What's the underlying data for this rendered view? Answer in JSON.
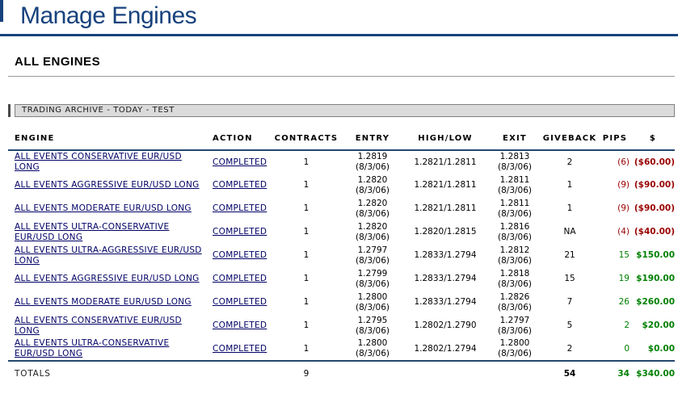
{
  "page": {
    "title": "Manage Engines",
    "section_title": "ALL ENGINES",
    "archive_bar_label": "TRADING ARCHIVE - TODAY - TEST"
  },
  "colors": {
    "brand_navy": "#17427D",
    "table_rule_navy": "#24476F",
    "link_navy": "#000066",
    "negative_red": "#990000",
    "positive_green": "#008000"
  },
  "table": {
    "columns": [
      "ENGINE",
      "ACTION",
      "CONTRACTS",
      "ENTRY",
      "HIGH/LOW",
      "EXIT",
      "GIVEBACK",
      "PIPS",
      "$"
    ],
    "rows": [
      {
        "engine": "ALL EVENTS CONSERVATIVE EUR/USD LONG",
        "action": "COMPLETED",
        "contracts": "1",
        "entry": "1.2819",
        "entry_date": "(8/3/06)",
        "highlow": "1.2821/1.2811",
        "exit": "1.2813",
        "exit_date": "(8/3/06)",
        "giveback": "2",
        "pips": "(6)",
        "dollars": "($60.00)",
        "sign": "neg"
      },
      {
        "engine": "ALL EVENTS AGGRESSIVE EUR/USD LONG",
        "action": "COMPLETED",
        "contracts": "1",
        "entry": "1.2820",
        "entry_date": "(8/3/06)",
        "highlow": "1.2821/1.2811",
        "exit": "1.2811",
        "exit_date": "(8/3/06)",
        "giveback": "1",
        "pips": "(9)",
        "dollars": "($90.00)",
        "sign": "neg"
      },
      {
        "engine": "ALL EVENTS MODERATE EUR/USD LONG",
        "action": "COMPLETED",
        "contracts": "1",
        "entry": "1.2820",
        "entry_date": "(8/3/06)",
        "highlow": "1.2821/1.2811",
        "exit": "1.2811",
        "exit_date": "(8/3/06)",
        "giveback": "1",
        "pips": "(9)",
        "dollars": "($90.00)",
        "sign": "neg"
      },
      {
        "engine": "ALL EVENTS ULTRA-CONSERVATIVE EUR/USD LONG",
        "action": "COMPLETED",
        "contracts": "1",
        "entry": "1.2820",
        "entry_date": "(8/3/06)",
        "highlow": "1.2820/1.2815",
        "exit": "1.2816",
        "exit_date": "(8/3/06)",
        "giveback": "NA",
        "pips": "(4)",
        "dollars": "($40.00)",
        "sign": "neg"
      },
      {
        "engine": "ALL EVENTS ULTRA-AGGRESSIVE EUR/USD LONG",
        "action": "COMPLETED",
        "contracts": "1",
        "entry": "1.2797",
        "entry_date": "(8/3/06)",
        "highlow": "1.2833/1.2794",
        "exit": "1.2812",
        "exit_date": "(8/3/06)",
        "giveback": "21",
        "pips": "15",
        "dollars": "$150.00",
        "sign": "pos"
      },
      {
        "engine": "ALL EVENTS AGGRESSIVE EUR/USD LONG",
        "action": "COMPLETED",
        "contracts": "1",
        "entry": "1.2799",
        "entry_date": "(8/3/06)",
        "highlow": "1.2833/1.2794",
        "exit": "1.2818",
        "exit_date": "(8/3/06)",
        "giveback": "15",
        "pips": "19",
        "dollars": "$190.00",
        "sign": "pos"
      },
      {
        "engine": "ALL EVENTS MODERATE EUR/USD LONG",
        "action": "COMPLETED",
        "contracts": "1",
        "entry": "1.2800",
        "entry_date": "(8/3/06)",
        "highlow": "1.2833/1.2794",
        "exit": "1.2826",
        "exit_date": "(8/3/06)",
        "giveback": "7",
        "pips": "26",
        "dollars": "$260.00",
        "sign": "pos"
      },
      {
        "engine": "ALL EVENTS CONSERVATIVE EUR/USD LONG",
        "action": "COMPLETED",
        "contracts": "1",
        "entry": "1.2795",
        "entry_date": "(8/3/06)",
        "highlow": "1.2802/1.2790",
        "exit": "1.2797",
        "exit_date": "(8/3/06)",
        "giveback": "5",
        "pips": "2",
        "dollars": "$20.00",
        "sign": "pos"
      },
      {
        "engine": "ALL EVENTS ULTRA-CONSERVATIVE EUR/USD LONG",
        "action": "COMPLETED",
        "contracts": "1",
        "entry": "1.2800",
        "entry_date": "(8/3/06)",
        "highlow": "1.2802/1.2794",
        "exit": "1.2800",
        "exit_date": "(8/3/06)",
        "giveback": "2",
        "pips": "0",
        "dollars": "$0.00",
        "sign": "pos"
      }
    ],
    "totals": {
      "label": "TOTALS",
      "contracts": "9",
      "giveback": "54",
      "pips": "34",
      "dollars": "$340.00"
    }
  }
}
